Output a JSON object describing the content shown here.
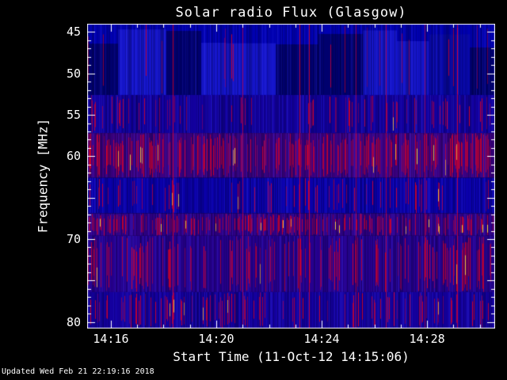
{
  "chart_data": {
    "type": "heatmap",
    "title": "Solar radio Flux (Glasgow)",
    "xlabel": "Start Time (11-Oct-12 14:15:06)",
    "ylabel": "Frequency [MHz]",
    "x_axis": {
      "date": "11-Oct-12",
      "start_time": "14:15:06",
      "range_seconds": [
        0,
        929
      ],
      "major_tick_interval_seconds": 240,
      "minor_tick_interval_seconds": 60,
      "ticks": [
        {
          "label": "14:16",
          "seconds": 54
        },
        {
          "label": "14:20",
          "seconds": 294
        },
        {
          "label": "14:24",
          "seconds": 534
        },
        {
          "label": "14:28",
          "seconds": 774
        }
      ]
    },
    "y_axis": {
      "unit": "MHz",
      "range": [
        44.0,
        80.8
      ],
      "labeled_ticks": [
        45,
        50,
        55,
        60,
        70,
        80
      ],
      "major_ticks": [
        45,
        50,
        55,
        60,
        65,
        70,
        75,
        80
      ],
      "minor_tick_interval": 1
    },
    "bands": [
      {
        "f_lo": 44.0,
        "f_hi": 52.6,
        "base": "#0000b0",
        "red_density": 0.03,
        "blocky": true
      },
      {
        "f_lo": 52.6,
        "f_hi": 57.2,
        "base": "#12009e",
        "red_density": 0.12,
        "blocky": false
      },
      {
        "f_lo": 57.2,
        "f_hi": 62.6,
        "base": "#3c0082",
        "red_density": 0.4,
        "blocky": false
      },
      {
        "f_lo": 62.6,
        "f_hi": 66.9,
        "base": "#0a00aa",
        "red_density": 0.12,
        "blocky": false
      },
      {
        "f_lo": 66.9,
        "f_hi": 69.6,
        "base": "#300088",
        "red_density": 0.34,
        "blocky": false
      },
      {
        "f_lo": 69.6,
        "f_hi": 76.4,
        "base": "#26008e",
        "red_density": 0.26,
        "blocky": false
      },
      {
        "f_lo": 76.4,
        "f_hi": 80.8,
        "base": "#14009e",
        "red_density": 0.18,
        "blocky": false
      }
    ],
    "palette": {
      "background": "#000000",
      "quiet_flux": "#0000bb",
      "burst": "#d00028",
      "strong_burst": "#ffd23c",
      "axis_and_text": "#ffffff"
    },
    "legend": "none",
    "grid": false
  },
  "footer": {
    "updated": "Updated Wed Feb 21 22:19:16 2018"
  }
}
